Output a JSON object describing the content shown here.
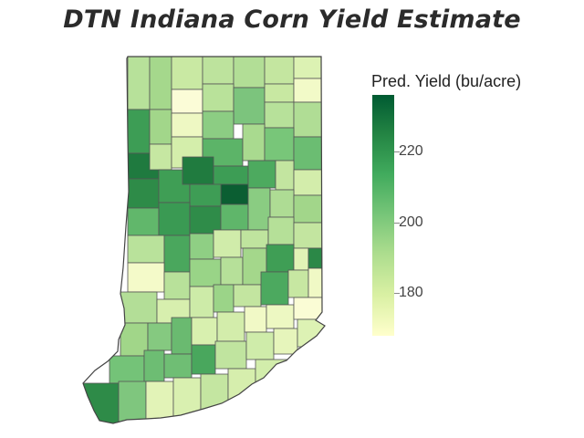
{
  "title": "DTN Indiana Corn Yield Estimate",
  "legend": {
    "title": "Pred. Yield (bu/acre)",
    "min": 168,
    "max": 236,
    "ticks": [
      {
        "value": 220,
        "label": "220"
      },
      {
        "value": 200,
        "label": "200"
      },
      {
        "value": 180,
        "label": "180"
      }
    ],
    "colors": [
      "#ffffcc",
      "#d9f0a3",
      "#addd8e",
      "#78c679",
      "#41ab5d",
      "#238443",
      "#005a32"
    ]
  }
}
